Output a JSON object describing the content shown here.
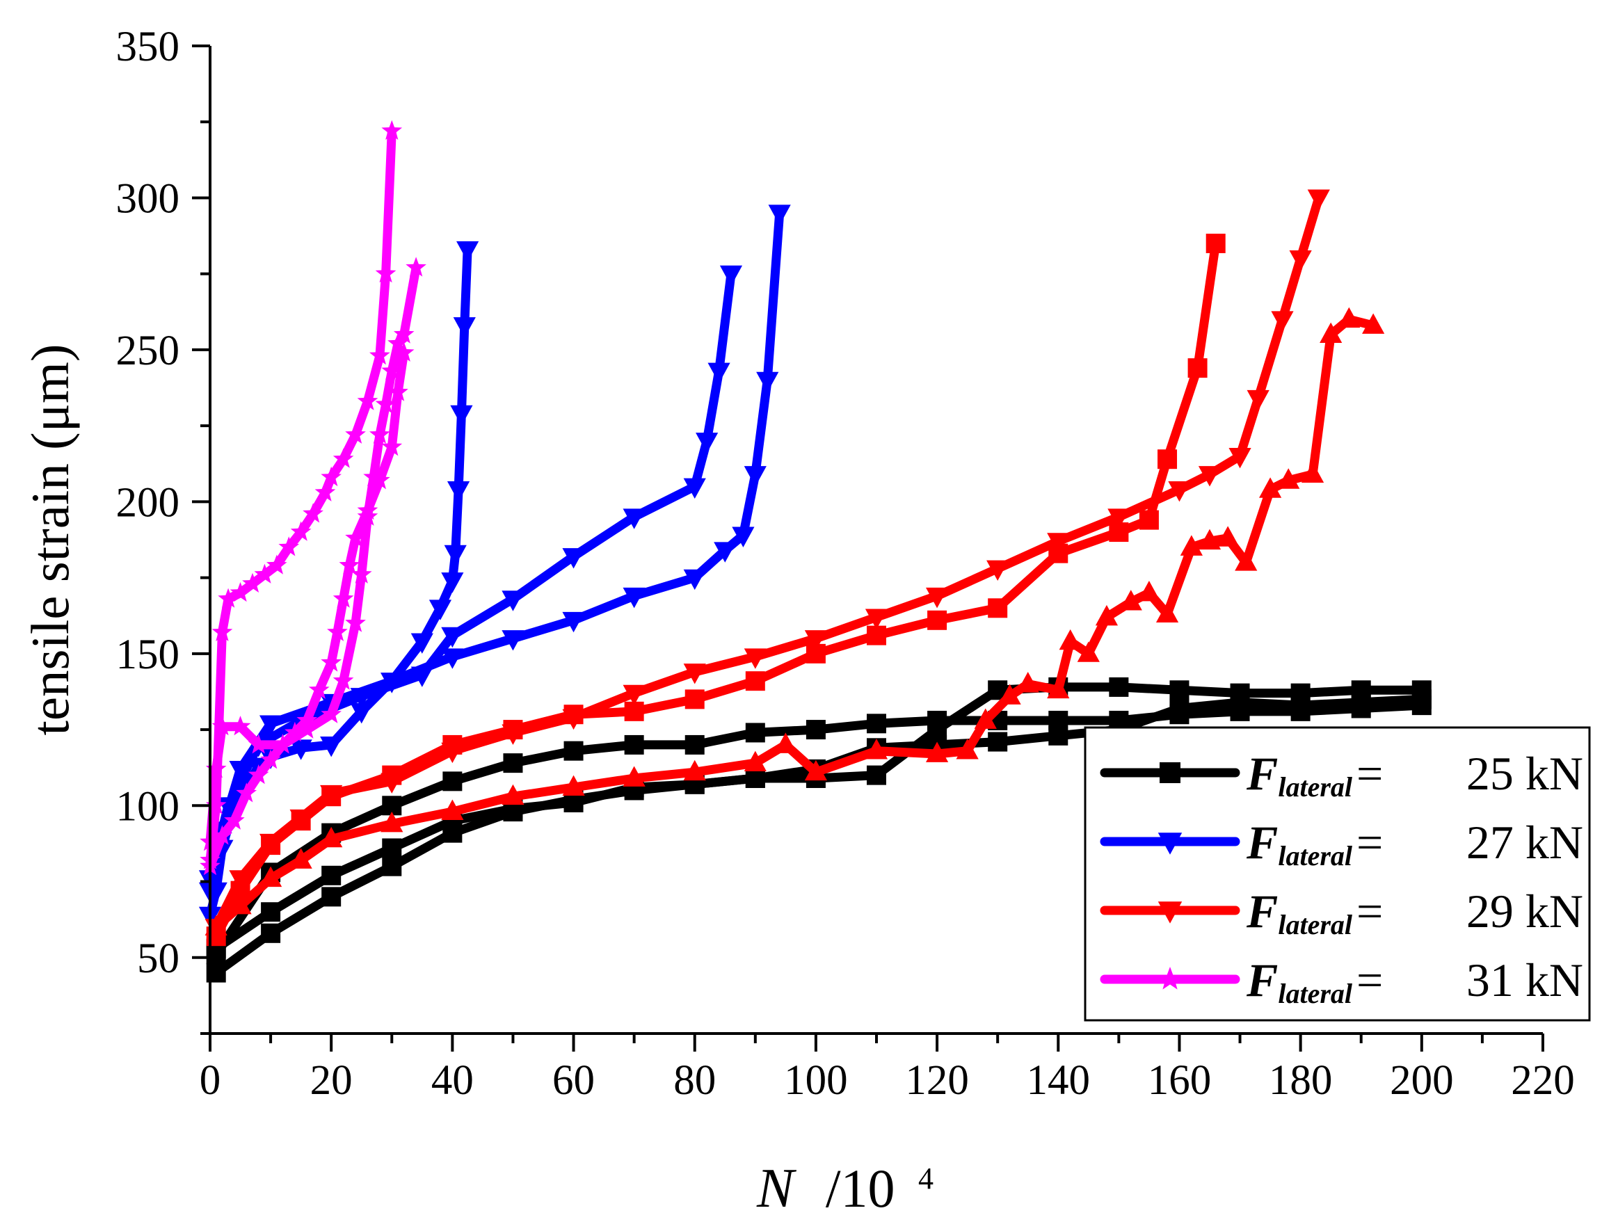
{
  "chart_data": {
    "type": "line",
    "x_axis": {
      "label": "N",
      "unit": "/10",
      "exponent": "4",
      "min": 0,
      "max": 220,
      "ticks": [
        "0",
        "20",
        "40",
        "60",
        "80",
        "100",
        "120",
        "140",
        "160",
        "180",
        "200",
        "220"
      ]
    },
    "y_axis": {
      "label": "tensile strain (μm)",
      "min": 25,
      "max": 350,
      "ticks": [
        "50",
        "100",
        "150",
        "200",
        "250",
        "300",
        "350"
      ]
    },
    "grid": false,
    "legend": {
      "position": "bottom-right",
      "symbol": "F",
      "subscript": "lateral",
      "equals": "=",
      "entries": [
        {
          "value": "25 kN",
          "color": "#000000",
          "marker": "square"
        },
        {
          "value": "27 kN",
          "color": "#0000ff",
          "marker": "triangle-down"
        },
        {
          "value": "29 kN",
          "color": "#ff0000",
          "marker": "triangle-down"
        },
        {
          "value": "31 kN",
          "color": "#ff00ff",
          "marker": "star"
        }
      ]
    },
    "series": [
      {
        "name": "25 kN a",
        "color": "#000000",
        "marker": "square",
        "points": [
          [
            1,
            45
          ],
          [
            10,
            58
          ],
          [
            20,
            70
          ],
          [
            30,
            80
          ],
          [
            40,
            91
          ],
          [
            50,
            98
          ],
          [
            60,
            102
          ],
          [
            70,
            105
          ],
          [
            80,
            107
          ],
          [
            90,
            109
          ],
          [
            100,
            109
          ],
          [
            110,
            110
          ],
          [
            120,
            125
          ],
          [
            130,
            138
          ],
          [
            140,
            139
          ],
          [
            150,
            139
          ],
          [
            160,
            138
          ],
          [
            170,
            137
          ],
          [
            180,
            137
          ],
          [
            190,
            138
          ],
          [
            200,
            138
          ]
        ]
      },
      {
        "name": "25 kN b",
        "color": "#000000",
        "marker": "square",
        "points": [
          [
            1,
            53
          ],
          [
            10,
            65
          ],
          [
            20,
            77
          ],
          [
            30,
            86
          ],
          [
            40,
            95
          ],
          [
            50,
            99
          ],
          [
            60,
            101
          ],
          [
            70,
            106
          ],
          [
            80,
            107
          ],
          [
            90,
            109
          ],
          [
            100,
            112
          ],
          [
            110,
            119
          ],
          [
            120,
            120
          ],
          [
            130,
            121
          ],
          [
            140,
            123
          ],
          [
            150,
            125
          ],
          [
            160,
            132
          ],
          [
            170,
            134
          ],
          [
            180,
            133
          ],
          [
            190,
            134
          ],
          [
            200,
            135
          ]
        ]
      },
      {
        "name": "25 kN c",
        "color": "#000000",
        "marker": "square",
        "points": [
          [
            1,
            51
          ],
          [
            10,
            78
          ],
          [
            20,
            91
          ],
          [
            30,
            100
          ],
          [
            40,
            108
          ],
          [
            50,
            114
          ],
          [
            60,
            118
          ],
          [
            70,
            120
          ],
          [
            80,
            120
          ],
          [
            90,
            124
          ],
          [
            100,
            125
          ],
          [
            110,
            127
          ],
          [
            120,
            128
          ],
          [
            130,
            128
          ],
          [
            140,
            128
          ],
          [
            150,
            128
          ],
          [
            160,
            130
          ],
          [
            170,
            131
          ],
          [
            180,
            131
          ],
          [
            190,
            132
          ],
          [
            200,
            133
          ]
        ]
      },
      {
        "name": "27 kN a",
        "color": "#0000ff",
        "marker": "triangle-down",
        "points": [
          [
            0,
            64
          ],
          [
            1,
            72
          ],
          [
            2,
            86
          ],
          [
            4,
            100
          ],
          [
            6,
            106
          ],
          [
            8,
            113
          ],
          [
            10,
            116
          ],
          [
            15,
            119
          ],
          [
            20,
            120
          ],
          [
            25,
            131
          ],
          [
            30,
            141
          ],
          [
            35,
            154
          ],
          [
            38,
            165
          ],
          [
            40,
            174
          ],
          [
            40.5,
            183
          ],
          [
            41,
            204
          ],
          [
            41.5,
            229
          ],
          [
            42,
            258
          ],
          [
            42.5,
            283
          ]
        ]
      },
      {
        "name": "27 kN b",
        "color": "#0000ff",
        "marker": "triangle-down",
        "points": [
          [
            0,
            72
          ],
          [
            2,
            92
          ],
          [
            5,
            112
          ],
          [
            10,
            127
          ],
          [
            20,
            134
          ],
          [
            30,
            141
          ],
          [
            40,
            149
          ],
          [
            50,
            155
          ],
          [
            60,
            161
          ],
          [
            70,
            169
          ],
          [
            80,
            175
          ],
          [
            85,
            184
          ],
          [
            88,
            189
          ],
          [
            90,
            209
          ],
          [
            92,
            240
          ],
          [
            94,
            295
          ]
        ]
      },
      {
        "name": "27 kN c",
        "color": "#0000ff",
        "marker": "triangle-down",
        "points": [
          [
            0,
            76
          ],
          [
            3,
            100
          ],
          [
            8,
            120
          ],
          [
            15,
            128
          ],
          [
            25,
            136
          ],
          [
            35,
            143
          ],
          [
            40,
            156
          ],
          [
            50,
            168
          ],
          [
            60,
            182
          ],
          [
            70,
            195
          ],
          [
            80,
            205
          ],
          [
            82,
            220
          ],
          [
            84,
            243
          ],
          [
            86,
            275
          ]
        ]
      },
      {
        "name": "29 kN a",
        "color": "#ff0000",
        "marker": "square",
        "points": [
          [
            1,
            57
          ],
          [
            5,
            72
          ],
          [
            10,
            87
          ],
          [
            15,
            95
          ],
          [
            20,
            103
          ],
          [
            30,
            110
          ],
          [
            40,
            120
          ],
          [
            50,
            125
          ],
          [
            60,
            130
          ],
          [
            70,
            131
          ],
          [
            80,
            135
          ],
          [
            90,
            141
          ],
          [
            100,
            150
          ],
          [
            110,
            156
          ],
          [
            120,
            161
          ],
          [
            130,
            165
          ],
          [
            140,
            183
          ],
          [
            150,
            190
          ],
          [
            155,
            194
          ],
          [
            158,
            214
          ],
          [
            163,
            244
          ],
          [
            166,
            285
          ]
        ]
      },
      {
        "name": "29 kN b",
        "color": "#ff0000",
        "marker": "triangle-down",
        "points": [
          [
            1,
            60
          ],
          [
            5,
            76
          ],
          [
            10,
            88
          ],
          [
            15,
            96
          ],
          [
            20,
            104
          ],
          [
            30,
            108
          ],
          [
            40,
            118
          ],
          [
            50,
            124
          ],
          [
            60,
            129
          ],
          [
            70,
            137
          ],
          [
            80,
            144
          ],
          [
            90,
            149
          ],
          [
            100,
            155
          ],
          [
            110,
            162
          ],
          [
            120,
            169
          ],
          [
            130,
            178
          ],
          [
            140,
            187
          ],
          [
            150,
            195
          ],
          [
            160,
            204
          ],
          [
            165,
            209
          ],
          [
            170,
            215
          ],
          [
            173,
            234
          ],
          [
            177,
            260
          ],
          [
            180,
            280
          ],
          [
            183,
            300
          ]
        ]
      },
      {
        "name": "29 kN c",
        "color": "#ff0000",
        "marker": "triangle-up",
        "points": [
          [
            1,
            60
          ],
          [
            5,
            67
          ],
          [
            10,
            76
          ],
          [
            15,
            82
          ],
          [
            20,
            89
          ],
          [
            30,
            94
          ],
          [
            40,
            98
          ],
          [
            50,
            103
          ],
          [
            60,
            106
          ],
          [
            70,
            109
          ],
          [
            80,
            111
          ],
          [
            90,
            114
          ],
          [
            95,
            120
          ],
          [
            100,
            111
          ],
          [
            110,
            118
          ],
          [
            120,
            117
          ],
          [
            125,
            118
          ],
          [
            128,
            128
          ],
          [
            132,
            136
          ],
          [
            135,
            140
          ],
          [
            140,
            138
          ],
          [
            142,
            154
          ],
          [
            145,
            150
          ],
          [
            148,
            162
          ],
          [
            152,
            167
          ],
          [
            155,
            170
          ],
          [
            158,
            163
          ],
          [
            162,
            185
          ],
          [
            165,
            187
          ],
          [
            168,
            188
          ],
          [
            171,
            180
          ],
          [
            175,
            204
          ],
          [
            178,
            207
          ],
          [
            182,
            209
          ],
          [
            185,
            255
          ],
          [
            188,
            260
          ],
          [
            192,
            258
          ]
        ]
      },
      {
        "name": "31 kN a",
        "color": "#ff00ff",
        "marker": "star",
        "points": [
          [
            0,
            82
          ],
          [
            1,
            100
          ],
          [
            2,
            157
          ],
          [
            3,
            168
          ],
          [
            5,
            170
          ],
          [
            7,
            173
          ],
          [
            9,
            176
          ],
          [
            11,
            179
          ],
          [
            13,
            185
          ],
          [
            15,
            190
          ],
          [
            17,
            196
          ],
          [
            19,
            203
          ],
          [
            20,
            208
          ],
          [
            22,
            214
          ],
          [
            24,
            222
          ],
          [
            26,
            233
          ],
          [
            28,
            248
          ],
          [
            29,
            275
          ],
          [
            30,
            322
          ]
        ]
      },
      {
        "name": "31 kN b",
        "color": "#ff00ff",
        "marker": "star",
        "points": [
          [
            0,
            88
          ],
          [
            1,
            112
          ],
          [
            2,
            126
          ],
          [
            5,
            126
          ],
          [
            8,
            120
          ],
          [
            12,
            120
          ],
          [
            16,
            125
          ],
          [
            20,
            130
          ],
          [
            22,
            141
          ],
          [
            24,
            160
          ],
          [
            25,
            176
          ],
          [
            26,
            195
          ],
          [
            27,
            208
          ],
          [
            28,
            222
          ],
          [
            29,
            232
          ],
          [
            30,
            243
          ],
          [
            31,
            252
          ],
          [
            32,
            255
          ],
          [
            34,
            277
          ]
        ]
      },
      {
        "name": "31 kN c",
        "color": "#ff00ff",
        "marker": "star",
        "points": [
          [
            0,
            80
          ],
          [
            2,
            90
          ],
          [
            4,
            95
          ],
          [
            6,
            104
          ],
          [
            8,
            110
          ],
          [
            10,
            115
          ],
          [
            12,
            120
          ],
          [
            14,
            124
          ],
          [
            16,
            128
          ],
          [
            18,
            138
          ],
          [
            20,
            147
          ],
          [
            21,
            157
          ],
          [
            22,
            168
          ],
          [
            23,
            179
          ],
          [
            24,
            188
          ],
          [
            26,
            197
          ],
          [
            28,
            207
          ],
          [
            30,
            218
          ],
          [
            31,
            236
          ],
          [
            32,
            249
          ]
        ]
      }
    ]
  }
}
